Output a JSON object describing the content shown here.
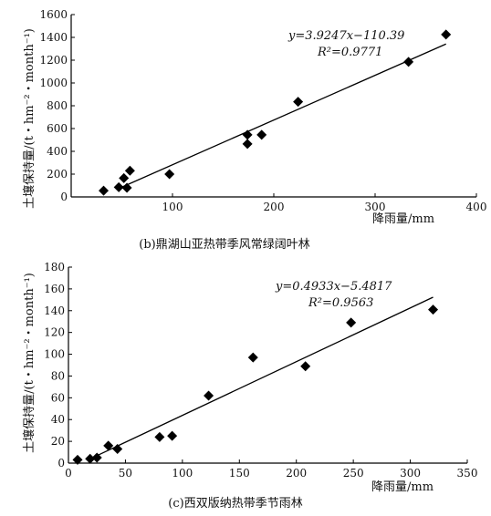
{
  "chart_data": [
    {
      "type": "scatter",
      "caption": "(b)鼎湖山亚热带季风常绿阔叶林",
      "xlabel": "降雨量/mm",
      "ylabel": "土壤保持量/(t・hm⁻²・month⁻¹)",
      "xlim": [
        0,
        400
      ],
      "ylim": [
        0,
        1600
      ],
      "xticks": [
        "100",
        "200",
        "300",
        "400"
      ],
      "yticks": [
        "0",
        "200",
        "400",
        "600",
        "800",
        "1000",
        "1200",
        "1400",
        "1600"
      ],
      "grid": false,
      "points": [
        {
          "x": 32,
          "y": 55
        },
        {
          "x": 47,
          "y": 85
        },
        {
          "x": 52,
          "y": 165
        },
        {
          "x": 55,
          "y": 80
        },
        {
          "x": 58,
          "y": 230
        },
        {
          "x": 97,
          "y": 200
        },
        {
          "x": 174,
          "y": 545
        },
        {
          "x": 174,
          "y": 465
        },
        {
          "x": 188,
          "y": 545
        },
        {
          "x": 224,
          "y": 835
        },
        {
          "x": 333,
          "y": 1185
        },
        {
          "x": 370,
          "y": 1425
        }
      ],
      "fit": {
        "slope": 3.9247,
        "intercept": -110.39,
        "x_range": [
          49,
          370
        ]
      },
      "equation": "y=3.9247x−110.39",
      "r2": "R²=0.9771"
    },
    {
      "type": "scatter",
      "caption": "(c)西双版纳热带季节雨林",
      "xlabel": "降雨量/mm",
      "ylabel": "土壤保持量/(t・hm⁻²・month⁻¹)",
      "xlim": [
        0,
        350
      ],
      "ylim": [
        0,
        180
      ],
      "xticks": [
        "0",
        "50",
        "100",
        "150",
        "200",
        "250",
        "300",
        "350"
      ],
      "yticks": [
        "0",
        "20",
        "40",
        "60",
        "80",
        "100",
        "120",
        "140",
        "160",
        "180"
      ],
      "grid": false,
      "points": [
        {
          "x": 8,
          "y": 3
        },
        {
          "x": 19,
          "y": 4
        },
        {
          "x": 25,
          "y": 5
        },
        {
          "x": 35,
          "y": 16
        },
        {
          "x": 43,
          "y": 13
        },
        {
          "x": 80,
          "y": 24
        },
        {
          "x": 91,
          "y": 25
        },
        {
          "x": 123,
          "y": 62
        },
        {
          "x": 162,
          "y": 97
        },
        {
          "x": 208,
          "y": 89
        },
        {
          "x": 248,
          "y": 129
        },
        {
          "x": 320,
          "y": 141
        }
      ],
      "fit": {
        "slope": 0.4933,
        "intercept": -5.4817,
        "x_range": [
          25,
          320
        ]
      },
      "equation": "y=0.4933x−5.4817",
      "r2": "R²=0.9563"
    }
  ]
}
